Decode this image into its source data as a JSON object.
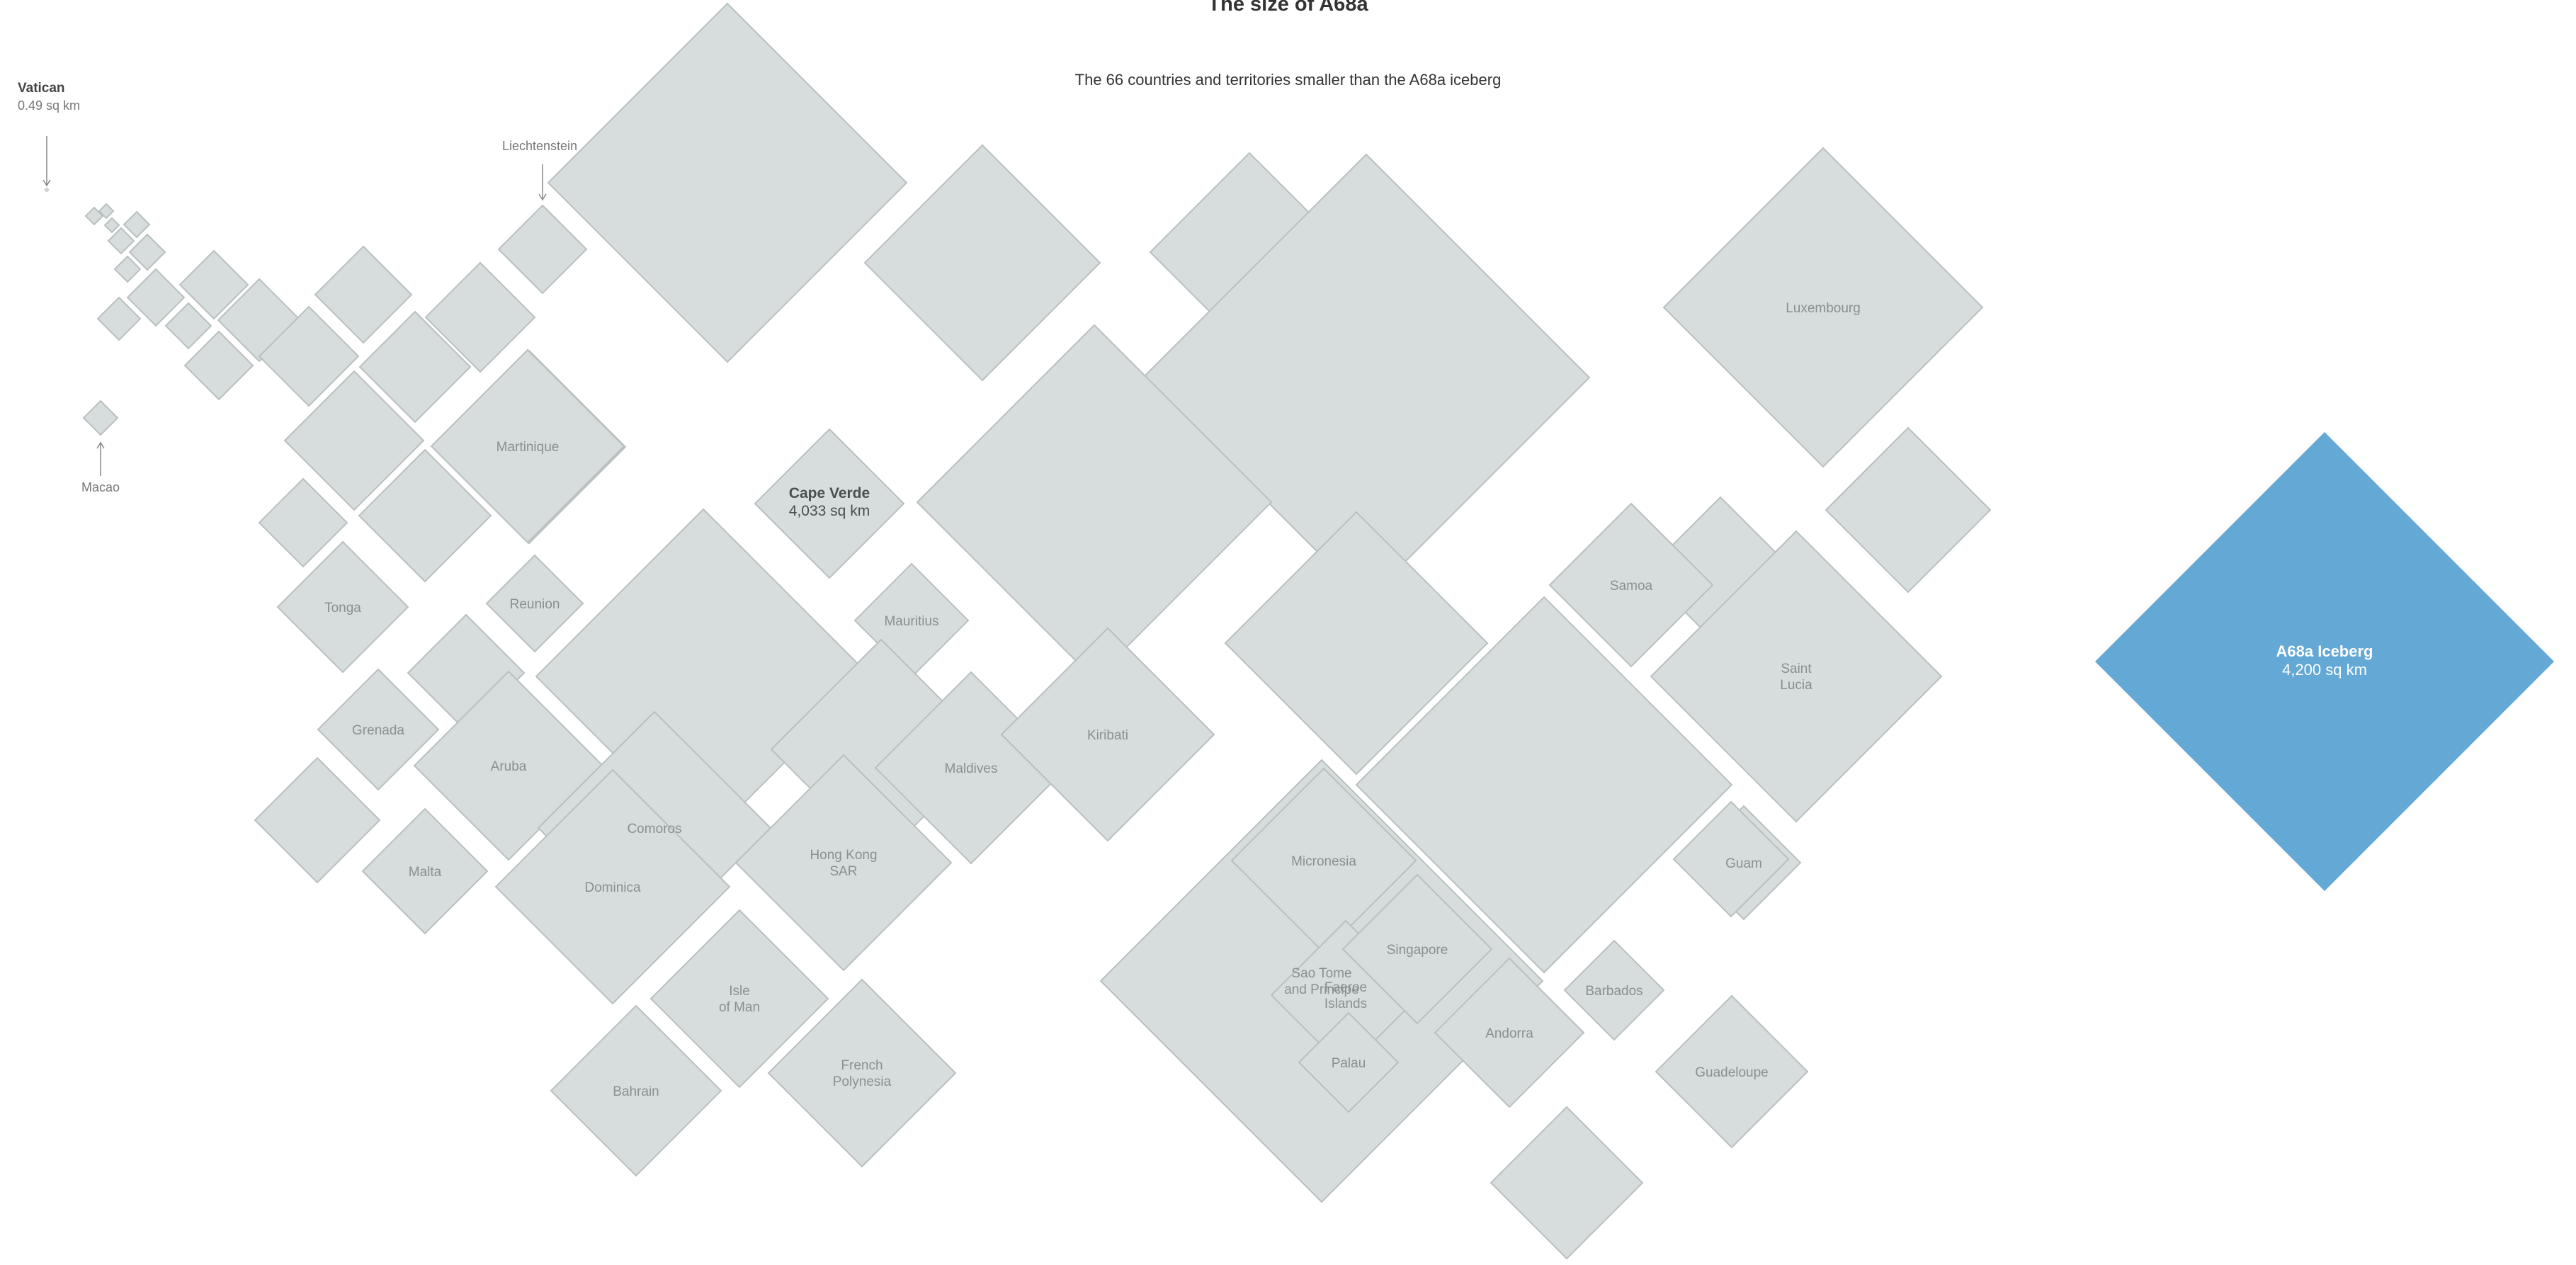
{
  "title": "The size of A68a",
  "subtitle": "The 66 countries and territories smaller than the A68a iceberg",
  "colors": {
    "country_fill": "#d7dcdc",
    "country_stroke": "#b9c0c0",
    "iceberg": "#64a8d6"
  },
  "annotations": {
    "vatican_name": "Vatican",
    "vatican_area": "0.49 sq km",
    "liechtenstein": "Liechtenstein",
    "macao": "Macao"
  },
  "countries": [
    {
      "label": ""
    },
    {
      "label": ""
    },
    {
      "label": ""
    },
    {
      "label": ""
    },
    {
      "label": ""
    },
    {
      "label": ""
    },
    {
      "label": ""
    },
    {
      "label": ""
    },
    {
      "label": ""
    },
    {
      "label": ""
    },
    {
      "label": ""
    },
    {
      "label": ""
    },
    {
      "label": ""
    },
    {
      "label": ""
    },
    {
      "label": ""
    },
    {
      "label": ""
    },
    {
      "label": ""
    },
    {
      "label": ""
    },
    {
      "label": ""
    },
    {
      "label": ""
    },
    {
      "label": ""
    },
    {
      "label": ""
    },
    {
      "label": ""
    },
    {
      "label": ""
    },
    {
      "label": ""
    },
    {
      "label": ""
    },
    {
      "label": ""
    },
    {
      "label": "Luxembourg"
    },
    {
      "label": "Martinique"
    },
    {
      "label": ""
    },
    {
      "label": "Cape Verde",
      "area": "4,033 sq km",
      "highlight": true
    },
    {
      "label": "Mauritius"
    },
    {
      "label": "Tonga"
    },
    {
      "label": "Reunion"
    },
    {
      "label": ""
    },
    {
      "label": ""
    },
    {
      "label": "Grenada"
    },
    {
      "label": "Aruba"
    },
    {
      "label": ""
    },
    {
      "label": "Comoros"
    },
    {
      "label": "Maldives"
    },
    {
      "label": "Dominica"
    },
    {
      "label": ""
    },
    {
      "label": "Malta"
    },
    {
      "label": "Hong Kong SAR"
    },
    {
      "label": "Sao Tome and Principe"
    },
    {
      "label": "Kiribati"
    },
    {
      "label": "Micronesia"
    },
    {
      "label": "Isle of Man"
    },
    {
      "label": "Bahrain"
    },
    {
      "label": "French Polynesia"
    },
    {
      "label": ""
    },
    {
      "label": "Faeroe Islands"
    },
    {
      "label": "Singapore"
    },
    {
      "label": "Andorra"
    },
    {
      "label": "Barbados"
    },
    {
      "label": ""
    },
    {
      "label": ""
    },
    {
      "label": "Samoa"
    },
    {
      "label": ""
    },
    {
      "label": "Saint Lucia"
    },
    {
      "label": "Guam"
    },
    {
      "label": "Guadeloupe"
    },
    {
      "label": ""
    },
    {
      "label": "Palau"
    },
    {
      "label": ""
    }
  ],
  "iceberg": {
    "label": "A68a Iceberg",
    "area": "4,200 sq km"
  }
}
